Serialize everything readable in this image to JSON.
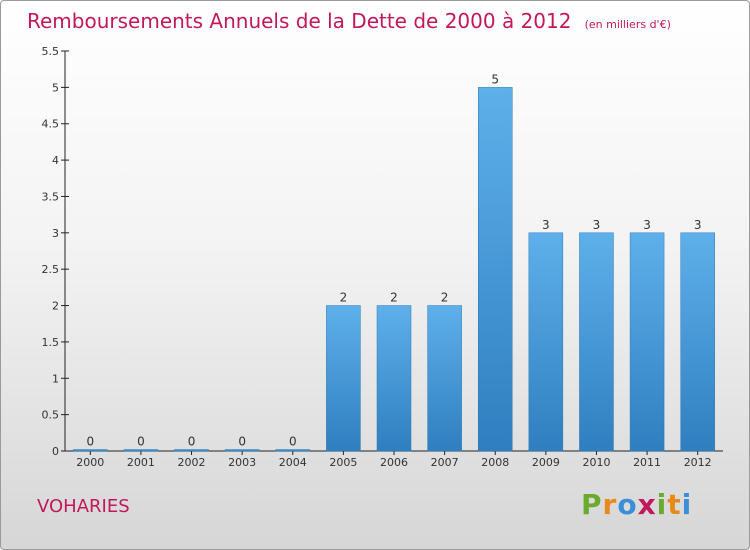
{
  "chart_data": {
    "type": "bar",
    "title": "Remboursements Annuels de la Dette de 2000 à 2012",
    "unit_note": "(en milliers d'€)",
    "categories": [
      "2000",
      "2001",
      "2002",
      "2003",
      "2004",
      "2005",
      "2006",
      "2007",
      "2008",
      "2009",
      "2010",
      "2011",
      "2012"
    ],
    "values": [
      0,
      0,
      0,
      0,
      0,
      2,
      2,
      2,
      5,
      3,
      3,
      3,
      3
    ],
    "data_labels": [
      "0",
      "0",
      "0",
      "0",
      "0",
      "2",
      "2",
      "2",
      "5",
      "3",
      "3",
      "3",
      "3"
    ],
    "y_ticks": [
      "0",
      "0.5",
      "1",
      "1.5",
      "2",
      "2.5",
      "3",
      "3.5",
      "4",
      "4.5",
      "5",
      "5.5"
    ],
    "ylim": [
      0,
      5.5
    ],
    "xlabel": "",
    "ylabel": "",
    "bar_color": "#3f97da"
  },
  "place_name": "VOHARIES",
  "logo": {
    "letters": [
      "P",
      "r",
      "o",
      "x",
      "i",
      "t",
      "i"
    ],
    "colors": [
      "#6aaa2e",
      "#e88a1a",
      "#3a8fd6",
      "#c2185b",
      "#6aaa2e",
      "#e88a1a",
      "#3a8fd6"
    ]
  }
}
